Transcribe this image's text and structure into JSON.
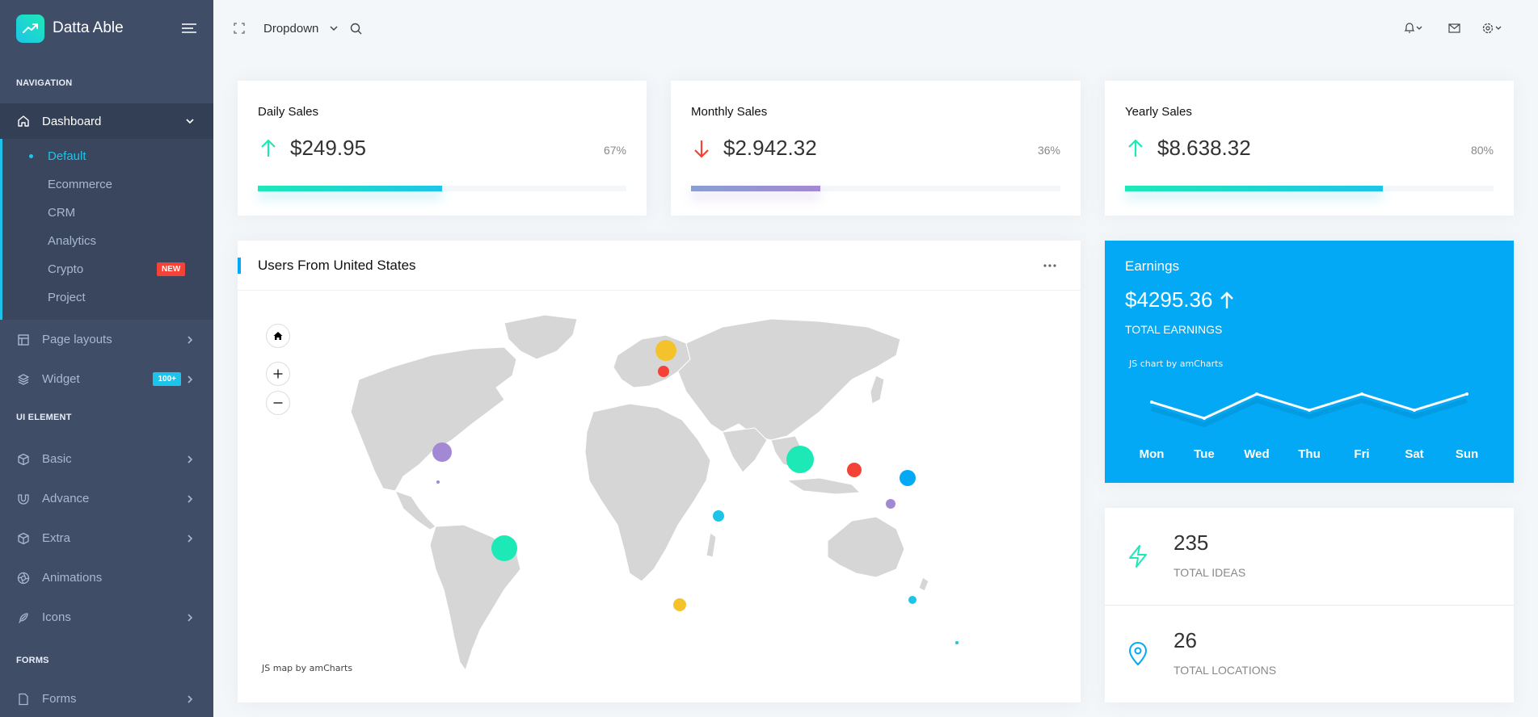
{
  "brand": {
    "title": "Datta Able"
  },
  "sidebar": {
    "captions": {
      "navigation": "NAVIGATION",
      "ui_element": "UI ELEMENT",
      "forms": "FORMS"
    },
    "dashboard": "Dashboard",
    "dashboard_sub": [
      "Default",
      "Ecommerce",
      "CRM",
      "Analytics",
      "Crypto",
      "Project"
    ],
    "crypto_badge": "NEW",
    "page_layouts": "Page layouts",
    "widget": "Widget",
    "widget_badge": "100+",
    "basic": "Basic",
    "advance": "Advance",
    "extra": "Extra",
    "animations": "Animations",
    "icons": "Icons",
    "forms": "Forms"
  },
  "header": {
    "dropdown": "Dropdown"
  },
  "sales": [
    {
      "title": "Daily Sales",
      "value": "$249.95",
      "percent": "67%",
      "progress": 50,
      "trend": "up"
    },
    {
      "title": "Monthly Sales",
      "value": "$2.942.32",
      "percent": "36%",
      "progress": 35,
      "trend": "down"
    },
    {
      "title": "Yearly Sales",
      "value": "$8.638.32",
      "percent": "80%",
      "progress": 70,
      "trend": "up"
    }
  ],
  "map": {
    "title": "Users From United States",
    "credit": "JS map by amCharts"
  },
  "earnings": {
    "title": "Earnings",
    "value": "$4295.36",
    "label": "TOTAL EARNINGS",
    "credit": "JS chart by amCharts"
  },
  "chart_data": {
    "type": "line",
    "title": "Earnings",
    "categories": [
      "Mon",
      "Tue",
      "Wed",
      "Thu",
      "Fri",
      "Sat",
      "Sun"
    ],
    "values": [
      60,
      20,
      80,
      40,
      80,
      40,
      80
    ],
    "ylim": [
      0,
      100
    ],
    "xlabel": "",
    "ylabel": ""
  },
  "stats": [
    {
      "value": "235",
      "label": "TOTAL IDEAS"
    },
    {
      "value": "26",
      "label": "TOTAL LOCATIONS"
    }
  ],
  "colors": {
    "accent": "#04a9f5",
    "teal": "#1de9b6",
    "cyan": "#1dc4e9",
    "red": "#f44236",
    "purple": "#a389d4",
    "yellow": "#f4c22b",
    "sidebar": "#3f4d67"
  }
}
